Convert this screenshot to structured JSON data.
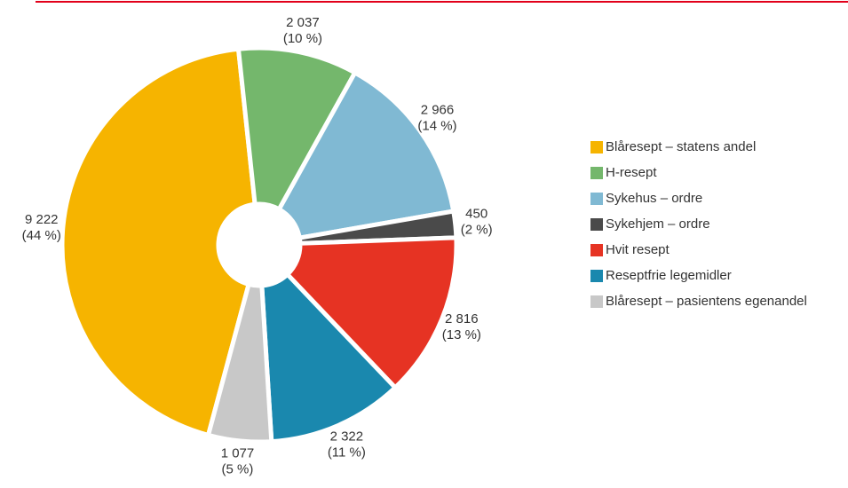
{
  "chart_data": {
    "type": "pie",
    "categories": [
      "Blåresept – statens andel",
      "H-resept",
      "Sykehus – ordre",
      "Sykehjem – ordre",
      "Hvit resept",
      "Reseptfrie legemidler",
      "Blåresept – pasientens egenandel"
    ],
    "values": [
      9222,
      2037,
      2966,
      450,
      2816,
      2322,
      1077
    ],
    "value_labels": [
      "9 222",
      "2 037",
      "2 966",
      "450",
      "2 816",
      "2 322",
      "1 077"
    ],
    "share_labels": [
      "(44 %)",
      "(10 %)",
      "(14 %)",
      "(2 %)",
      "(13 %)",
      "(11 %)",
      "(5 %)"
    ],
    "colors": [
      "#f6b400",
      "#74b76c",
      "#80b9d3",
      "#4a4a4a",
      "#e63323",
      "#1a88ae",
      "#c8c8c8"
    ],
    "legend": "right"
  }
}
